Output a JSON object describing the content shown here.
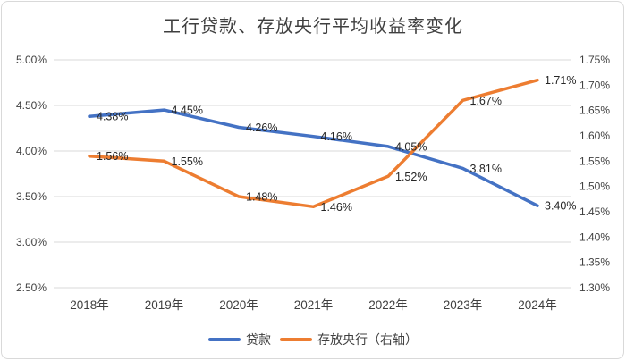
{
  "chart_data": {
    "type": "line",
    "title": "工行贷款、存放央行平均收益率变化",
    "categories": [
      "2018年",
      "2019年",
      "2020年",
      "2021年",
      "2022年",
      "2023年",
      "2024年"
    ],
    "series": [
      {
        "name": "贷款",
        "axis": "left",
        "color": "#4472C4",
        "values": [
          4.38,
          4.45,
          4.26,
          4.16,
          4.05,
          3.81,
          3.4
        ],
        "labels": [
          "4.38%",
          "4.45%",
          "4.26%",
          "4.16%",
          "4.05%",
          "3.81%",
          "3.40%"
        ]
      },
      {
        "name": "存放央行（右轴）",
        "axis": "right",
        "color": "#ED7D31",
        "values": [
          1.56,
          1.55,
          1.48,
          1.46,
          1.52,
          1.67,
          1.71
        ],
        "labels": [
          "1.56%",
          "1.55%",
          "1.48%",
          "1.46%",
          "1.52%",
          "1.67%",
          "1.71%"
        ]
      }
    ],
    "left_axis": {
      "min": 2.5,
      "max": 5.0,
      "ticks": [
        "5.00%",
        "4.50%",
        "4.00%",
        "3.50%",
        "3.00%",
        "2.50%"
      ]
    },
    "right_axis": {
      "min": 1.3,
      "max": 1.75,
      "ticks": [
        "1.75%",
        "1.70%",
        "1.65%",
        "1.60%",
        "1.55%",
        "1.50%",
        "1.45%",
        "1.40%",
        "1.35%",
        "1.30%"
      ]
    },
    "grid": true,
    "legend_position": "bottom",
    "legend": [
      "贷款",
      "存放央行（右轴）"
    ],
    "colors": {
      "grid": "#d9d9d9",
      "tick_text": "#404040",
      "label_text": "#262626",
      "border": "#d9d9d9"
    }
  }
}
